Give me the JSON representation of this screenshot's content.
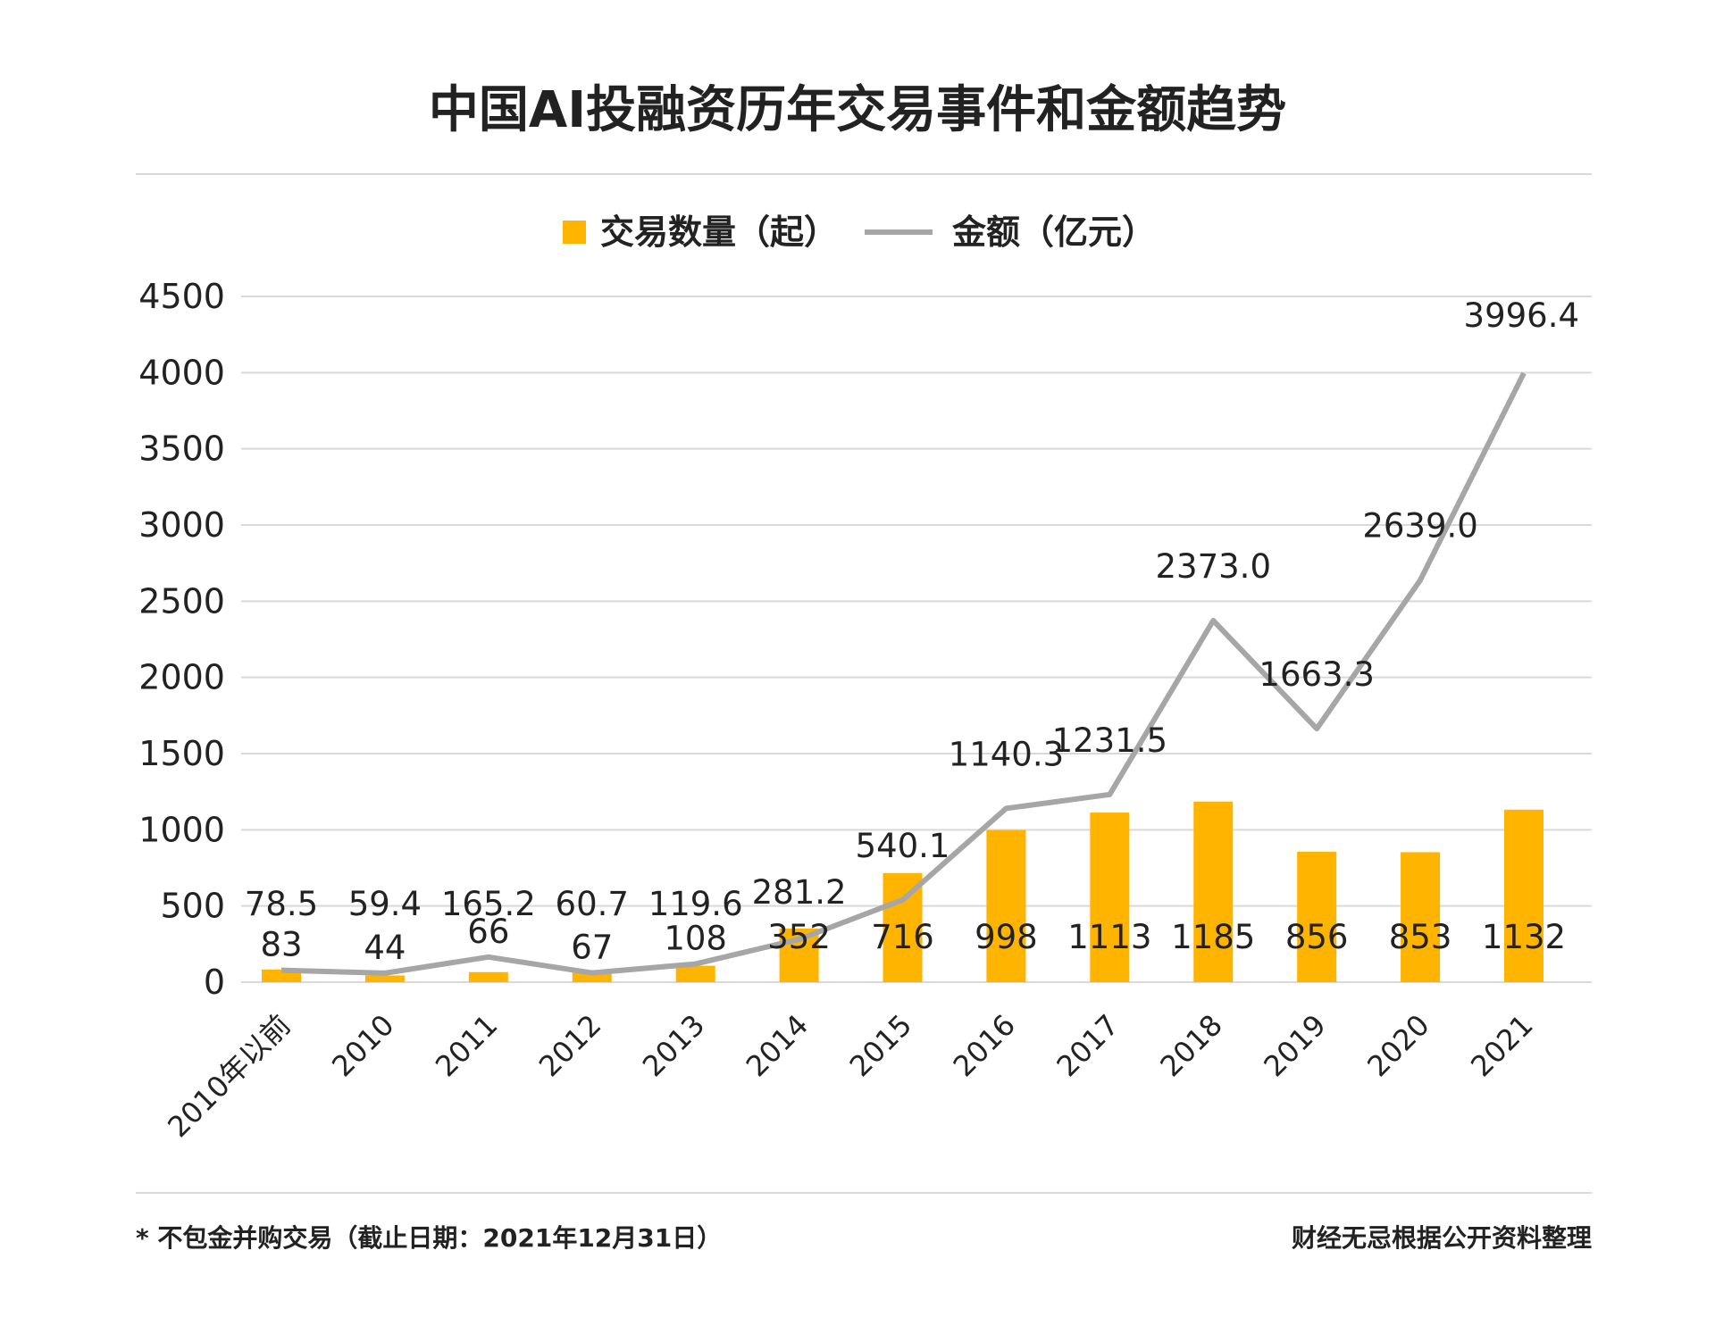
{
  "chart_data": {
    "type": "bar",
    "title": "中国AI投融资历年交易事件和金额趋势",
    "categories": [
      "2010年以前",
      "2010",
      "2011",
      "2012",
      "2013",
      "2014",
      "2015",
      "2016",
      "2017",
      "2018",
      "2019",
      "2020",
      "2021"
    ],
    "series": [
      {
        "name": "交易数量（起）",
        "type": "bar",
        "color": "#FFB400",
        "values": [
          83,
          44,
          66,
          67,
          108,
          352,
          716,
          998,
          1113,
          1185,
          856,
          853,
          1132
        ],
        "labels": [
          "83",
          "44",
          "66",
          "67",
          "108",
          "352",
          "716",
          "998",
          "1113",
          "1185",
          "856",
          "853",
          "1132"
        ]
      },
      {
        "name": "金额（亿元）",
        "type": "line",
        "color": "#A6A6A6",
        "values": [
          78.5,
          59.4,
          165.2,
          60.7,
          119.6,
          281.2,
          540.1,
          1140.3,
          1231.5,
          2373.0,
          1663.3,
          2639.0,
          3996.4
        ],
        "labels": [
          "78.5",
          "59.4",
          "165.2",
          "60.7",
          "119.6",
          "281.2",
          "540.1",
          "1140.3",
          "1231.5",
          "2373.0",
          "1663.3",
          "2639.0",
          "3996.4"
        ]
      }
    ],
    "yticks": [
      "0",
      "500",
      "1000",
      "1500",
      "2000",
      "2500",
      "3000",
      "3500",
      "4000",
      "4500"
    ],
    "ylim": [
      0,
      4500
    ],
    "grid": true,
    "legend_position": "top-center",
    "xlabel": "",
    "ylabel": ""
  },
  "footnote": {
    "left": "* 不包金并购交易（截止日期：2021年12月31日）",
    "right": "财经无忌根据公开资料整理"
  }
}
